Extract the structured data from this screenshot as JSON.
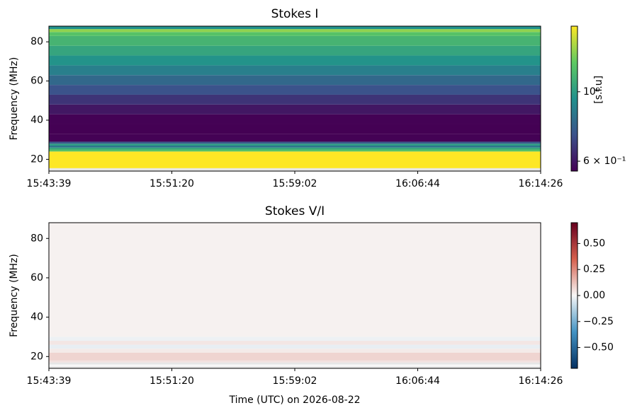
{
  "charts": [
    {
      "type": "heatmap",
      "title": "Stokes I",
      "ylabel": "Frequency (MHz)",
      "xticks": [
        "15:43:39",
        "15:51:20",
        "15:59:02",
        "16:06:44",
        "16:14:26"
      ],
      "ylim": [
        14,
        88
      ],
      "yticks": [
        20,
        40,
        60,
        80
      ],
      "y_edges": [
        14,
        15.5,
        24,
        25,
        26,
        27,
        28,
        29,
        33,
        38,
        43,
        48,
        53,
        58,
        63,
        68,
        73,
        78,
        83,
        85,
        86.5,
        88
      ],
      "values": [
        null,
        1.7,
        1.2,
        1.05,
        0.85,
        1.0,
        0.75,
        0.56,
        0.55,
        0.56,
        0.6,
        0.66,
        0.73,
        0.8,
        0.88,
        0.96,
        1.04,
        1.12,
        1.2,
        1.35,
        0.95
      ],
      "colormap": "viridis",
      "color_scale": "log",
      "clim": [
        0.558,
        1.62
      ],
      "cticks": [
        {
          "value": 1,
          "label": "10⁰"
        },
        {
          "value": 0.6,
          "label": "6 × 10⁻¹"
        }
      ],
      "clabel": "[s.f.u]"
    },
    {
      "type": "heatmap",
      "title": "Stokes V/I",
      "ylabel": "Frequency (MHz)",
      "xlabel": "Time (UTC) on 2026-08-22",
      "xticks": [
        "15:43:39",
        "15:51:20",
        "15:59:02",
        "16:06:44",
        "16:14:26"
      ],
      "ylim": [
        14,
        88
      ],
      "yticks": [
        20,
        40,
        60,
        80
      ],
      "y_edges": [
        14,
        15,
        16,
        17,
        18,
        22,
        24,
        26,
        28,
        30,
        88
      ],
      "values": [
        null,
        0.0,
        null,
        0.05,
        0.08,
        0.03,
        -0.03,
        0.04,
        -0.02,
        0.015
      ],
      "colormap": "RdBu_r",
      "color_scale": "linear",
      "clim": [
        -0.7,
        0.7
      ],
      "cticks": [
        {
          "value": 0.5,
          "label": "0.50"
        },
        {
          "value": 0.25,
          "label": "0.25"
        },
        {
          "value": 0,
          "label": "0.00"
        },
        {
          "value": -0.25,
          "label": "−0.25"
        },
        {
          "value": -0.5,
          "label": "−0.50"
        }
      ]
    }
  ]
}
